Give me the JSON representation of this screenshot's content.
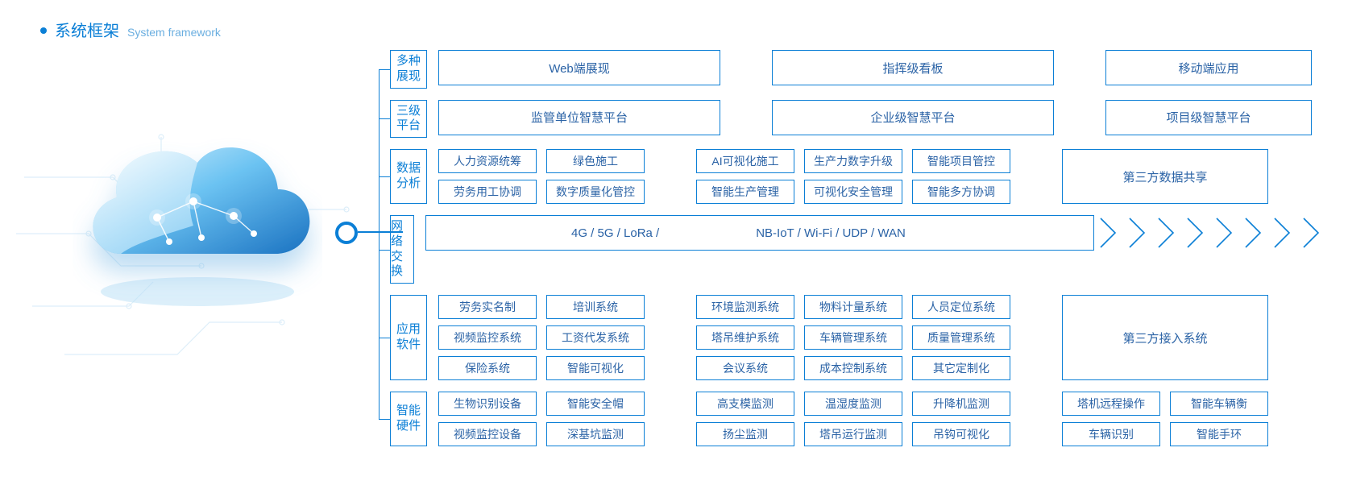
{
  "title": {
    "cn": "系统框架",
    "en": "System framework"
  },
  "colors": {
    "primary": "#0b7fd6",
    "text": "#2b63a6",
    "cloud_light": "#bfe6fb",
    "cloud_mid": "#5ab8ee",
    "cloud_dark": "#1e7fc9",
    "circuit": "#9fd0ef"
  },
  "rows": [
    {
      "label": [
        "多种",
        "展现"
      ],
      "type": "three-big",
      "items": [
        "Web端展现",
        "指挥级看板",
        "移动端应用"
      ]
    },
    {
      "label": [
        "三级",
        "平台"
      ],
      "type": "three-big",
      "items": [
        "监管单位智慧平台",
        "企业级智慧平台",
        "项目级智慧平台"
      ]
    },
    {
      "label": [
        "数据",
        "分析"
      ],
      "type": "grid-with-side",
      "grid": [
        [
          "人力资源统筹",
          "绿色施工",
          "AI可视化施工",
          "生产力数字升级",
          "智能项目管控"
        ],
        [
          "劳务用工协调",
          "数字质量化管控",
          "智能生产管理",
          "可视化安全管理",
          "智能多方协调"
        ]
      ],
      "side": "第三方数据共享"
    },
    {
      "label": [
        "网络",
        "交换"
      ],
      "type": "network",
      "text_a": "4G / 5G / LoRa /",
      "text_b": "NB-IoT / Wi-Fi / UDP / WAN",
      "chevrons": 8
    },
    {
      "label": [
        "应用",
        "软件"
      ],
      "type": "grid-with-side",
      "grid": [
        [
          "劳务实名制",
          "培训系统",
          "环境监测系统",
          "物料计量系统",
          "人员定位系统"
        ],
        [
          "视频监控系统",
          "工资代发系统",
          "塔吊维护系统",
          "车辆管理系统",
          "质量管理系统"
        ],
        [
          "保险系统",
          "智能可视化",
          "会议系统",
          "成本控制系统",
          "其它定制化"
        ]
      ],
      "side": "第三方接入系统"
    },
    {
      "label": [
        "智能",
        "硬件"
      ],
      "type": "grid-full",
      "grid": [
        [
          "生物识别设备",
          "智能安全帽",
          "高支模监测",
          "温湿度监测",
          "升降机监测",
          "塔机远程操作",
          "智能车辆衡"
        ],
        [
          "视频监控设备",
          "深基坑监测",
          "扬尘监测",
          "塔吊运行监测",
          "吊钩可视化",
          "车辆识别",
          "智能手环"
        ]
      ]
    }
  ]
}
